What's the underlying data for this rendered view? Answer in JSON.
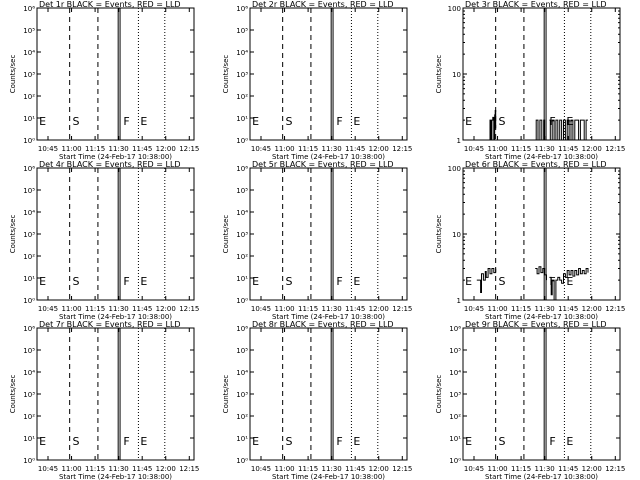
{
  "chart_data": [
    {
      "id": "det1",
      "type": "line",
      "title": "Det 1r BLACK = Events, RED = LLD",
      "ylabel": "Counts/sec",
      "xlabel": "Start Time (24-Feb-17 10:38:00)",
      "yscale": "log",
      "ylim": [
        1,
        1000000
      ],
      "yticks": [
        "10⁰",
        "10¹",
        "10²",
        "10³",
        "10⁴",
        "10⁵",
        "10⁶"
      ],
      "xticks": [
        "10:45",
        "11:00",
        "11:15",
        "11:30",
        "11:45",
        "12:00",
        "12:15"
      ],
      "marks": [
        "E",
        "S",
        "F",
        "E"
      ],
      "series": []
    },
    {
      "id": "det2",
      "type": "line",
      "title": "Det 2r BLACK = Events, RED = LLD",
      "ylabel": "Counts/sec",
      "xlabel": "Start Time (24-Feb-17 10:38:00)",
      "yscale": "log",
      "ylim": [
        1,
        1000000
      ],
      "yticks": [
        "10⁰",
        "10¹",
        "10²",
        "10³",
        "10⁴",
        "10⁵",
        "10⁶"
      ],
      "xticks": [
        "10:45",
        "11:00",
        "11:15",
        "11:30",
        "11:45",
        "12:00",
        "12:15"
      ],
      "marks": [
        "E",
        "S",
        "F",
        "E"
      ],
      "series": []
    },
    {
      "id": "det3",
      "type": "line",
      "title": "Det 3r BLACK = Events, RED = LLD",
      "ylabel": "Counts/sec",
      "xlabel": "Start Time (24-Feb-17 10:38:00)",
      "yscale": "log",
      "ylim": [
        1,
        100
      ],
      "yticks": [
        "1",
        "10",
        "100"
      ],
      "xticks": [
        "10:45",
        "11:00",
        "11:15",
        "11:30",
        "11:45",
        "12:00",
        "12:15"
      ],
      "marks": [
        "E",
        "S",
        "F",
        "E"
      ],
      "series": [
        {
          "segments": [
            [
              [
                10.9,
                1
              ],
              [
                10.92,
                2
              ],
              [
                10.93,
                1
              ],
              [
                10.94,
                2
              ],
              [
                10.95,
                2.2
              ],
              [
                10.96,
                1
              ],
              [
                10.97,
                2.4
              ],
              [
                10.975,
                2.8
              ],
              [
                10.98,
                1.5
              ]
            ],
            [
              [
                11.4,
                1
              ],
              [
                11.41,
                2
              ],
              [
                11.43,
                1
              ],
              [
                11.45,
                2
              ],
              [
                11.47,
                1
              ],
              [
                11.49,
                2
              ],
              [
                11.5,
                1
              ]
            ],
            [
              [
                11.55,
                2
              ],
              [
                11.56,
                1
              ],
              [
                11.58,
                2
              ],
              [
                11.6,
                1
              ],
              [
                11.62,
                2
              ],
              [
                11.64,
                1
              ],
              [
                11.66,
                2
              ],
              [
                11.68,
                1
              ],
              [
                11.7,
                2
              ],
              [
                11.72,
                1
              ],
              [
                11.74,
                2
              ],
              [
                11.76,
                1
              ],
              [
                11.78,
                2
              ],
              [
                11.8,
                1
              ],
              [
                11.82,
                2
              ],
              [
                11.84,
                2
              ],
              [
                11.86,
                1
              ],
              [
                11.88,
                2
              ],
              [
                11.9,
                2
              ],
              [
                11.92,
                1
              ],
              [
                11.94,
                2
              ],
              [
                11.96,
                2
              ]
            ]
          ]
        }
      ]
    },
    {
      "id": "det4",
      "type": "line",
      "title": "Det 4r BLACK = Events, RED = LLD",
      "ylabel": "Counts/sec",
      "xlabel": "Start Time (24-Feb-17 10:38:00)",
      "yscale": "log",
      "ylim": [
        1,
        1000000
      ],
      "yticks": [
        "10⁰",
        "10¹",
        "10²",
        "10³",
        "10⁴",
        "10⁵",
        "10⁶"
      ],
      "xticks": [
        "10:45",
        "11:00",
        "11:15",
        "11:30",
        "11:45",
        "12:00",
        "12:15"
      ],
      "marks": [
        "E",
        "S",
        "F",
        "E"
      ],
      "series": []
    },
    {
      "id": "det5",
      "type": "line",
      "title": "Det 5r BLACK = Events, RED = LLD",
      "ylabel": "Counts/sec",
      "xlabel": "Start Time (24-Feb-17 10:38:00)",
      "yscale": "log",
      "ylim": [
        1,
        1000000
      ],
      "yticks": [
        "10⁰",
        "10¹",
        "10²",
        "10³",
        "10⁴",
        "10⁵",
        "10⁶"
      ],
      "xticks": [
        "10:45",
        "11:00",
        "11:15",
        "11:30",
        "11:45",
        "12:00",
        "12:15"
      ],
      "marks": [
        "E",
        "S",
        "F",
        "E"
      ],
      "series": []
    },
    {
      "id": "det6",
      "type": "line",
      "title": "Det 6r BLACK = Events, RED = LLD",
      "ylabel": "Counts/sec",
      "xlabel": "Start Time (24-Feb-17 10:38:00)",
      "yscale": "log",
      "ylim": [
        1,
        100
      ],
      "yticks": [
        "1",
        "10",
        "100"
      ],
      "xticks": [
        "10:45",
        "11:00",
        "11:15",
        "11:30",
        "11:45",
        "12:00",
        "12:15"
      ],
      "marks": [
        "E",
        "S",
        "F",
        "E"
      ],
      "series": [
        {
          "segments": [
            [
              [
                10.78,
                2
              ],
              [
                10.8,
                2
              ],
              [
                10.82,
                1.3
              ],
              [
                10.83,
                2.5
              ],
              [
                10.85,
                2
              ],
              [
                10.87,
                2.7
              ],
              [
                10.88,
                2.2
              ],
              [
                10.9,
                3
              ],
              [
                10.92,
                2.5
              ],
              [
                10.94,
                3
              ],
              [
                10.96,
                2.6
              ],
              [
                10.98,
                3
              ]
            ],
            [
              [
                11.4,
                3
              ],
              [
                11.42,
                2.5
              ],
              [
                11.44,
                3.2
              ],
              [
                11.46,
                2.6
              ],
              [
                11.48,
                3
              ],
              [
                11.5,
                2.4
              ],
              [
                11.52,
                2
              ]
            ],
            [
              [
                11.55,
                2.2
              ],
              [
                11.57,
                1.2
              ],
              [
                11.58,
                2
              ],
              [
                11.6,
                1
              ],
              [
                11.62,
                2
              ],
              [
                11.64,
                2.2
              ],
              [
                11.66,
                2
              ],
              [
                11.68,
                1.8
              ],
              [
                11.7,
                2.5
              ],
              [
                11.72,
                2.2
              ],
              [
                11.74,
                2.8
              ],
              [
                11.76,
                2.4
              ],
              [
                11.78,
                2.8
              ],
              [
                11.8,
                2.3
              ],
              [
                11.82,
                2.8
              ],
              [
                11.84,
                2.4
              ],
              [
                11.86,
                3
              ],
              [
                11.88,
                2.5
              ],
              [
                11.9,
                2.8
              ],
              [
                11.92,
                2.5
              ],
              [
                11.94,
                3
              ],
              [
                11.96,
                2.6
              ]
            ]
          ]
        }
      ]
    },
    {
      "id": "det7",
      "type": "line",
      "title": "Det 7r BLACK = Events, RED = LLD",
      "ylabel": "Counts/sec",
      "xlabel": "Start Time (24-Feb-17 10:38:00)",
      "yscale": "log",
      "ylim": [
        1,
        1000000
      ],
      "yticks": [
        "10⁰",
        "10¹",
        "10²",
        "10³",
        "10⁴",
        "10⁵",
        "10⁶"
      ],
      "xticks": [
        "10:45",
        "11:00",
        "11:15",
        "11:30",
        "11:45",
        "12:00",
        "12:15"
      ],
      "marks": [
        "E",
        "S",
        "F",
        "E"
      ],
      "series": []
    },
    {
      "id": "det8",
      "type": "line",
      "title": "Det 8r BLACK = Events, RED = LLD",
      "ylabel": "Counts/sec",
      "xlabel": "Start Time (24-Feb-17 10:38:00)",
      "yscale": "log",
      "ylim": [
        1,
        1000000
      ],
      "yticks": [
        "10⁰",
        "10¹",
        "10²",
        "10³",
        "10⁴",
        "10⁵",
        "10⁶"
      ],
      "xticks": [
        "10:45",
        "11:00",
        "11:15",
        "11:30",
        "11:45",
        "12:00",
        "12:15"
      ],
      "marks": [
        "E",
        "S",
        "F",
        "E"
      ],
      "series": []
    },
    {
      "id": "det9",
      "type": "line",
      "title": "Det 9r BLACK = Events, RED = LLD",
      "ylabel": "Counts/sec",
      "xlabel": "Start Time (24-Feb-17 10:38:00)",
      "yscale": "log",
      "ylim": [
        1,
        1000000
      ],
      "yticks": [
        "10⁰",
        "10¹",
        "10²",
        "10³",
        "10⁴",
        "10⁵",
        "10⁶"
      ],
      "xticks": [
        "10:45",
        "11:00",
        "11:15",
        "11:30",
        "11:45",
        "12:00",
        "12:15"
      ],
      "marks": [
        "E",
        "S",
        "F",
        "E"
      ],
      "series": []
    }
  ]
}
